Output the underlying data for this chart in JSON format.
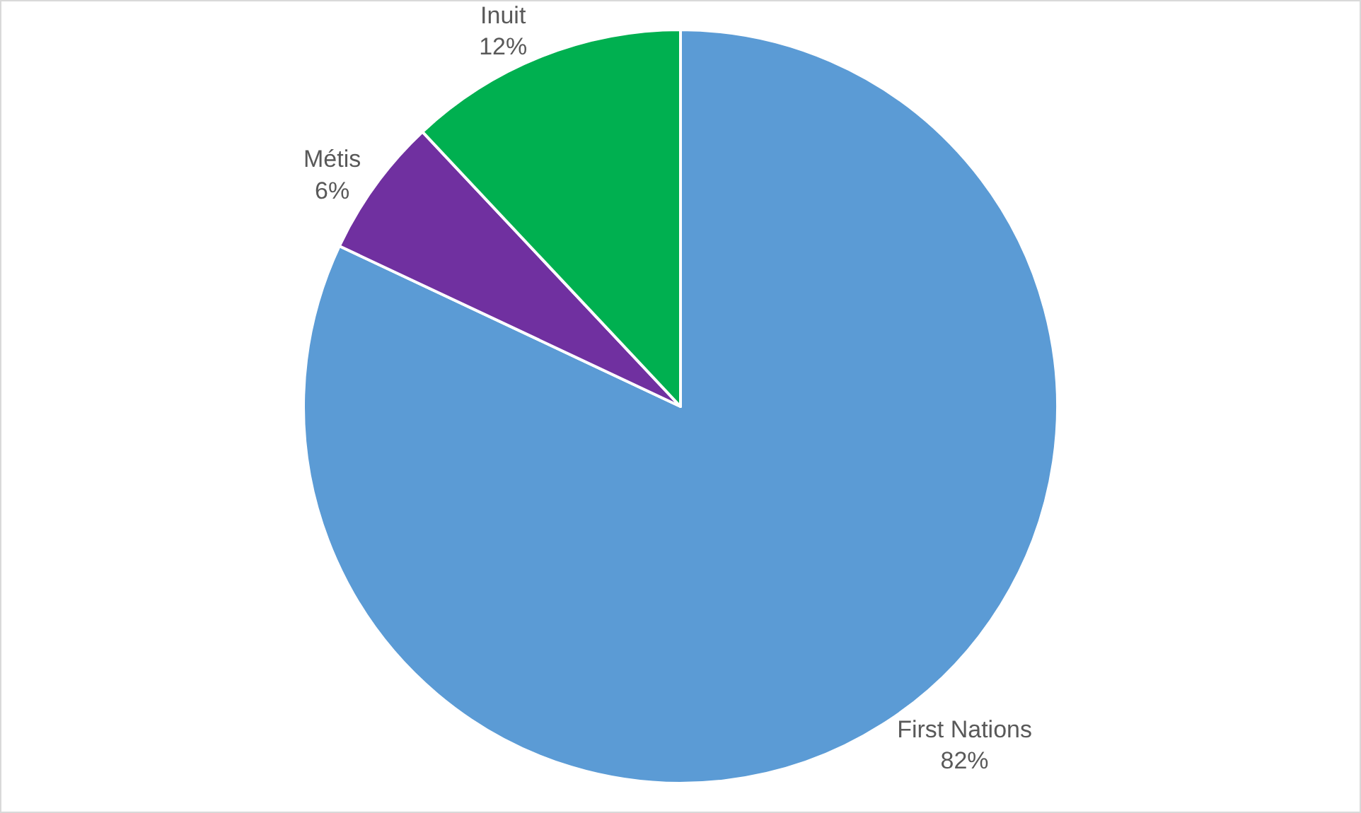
{
  "chart_data": {
    "type": "pie",
    "categories": [
      "First Nations",
      "Métis",
      "Inuit"
    ],
    "values": [
      82,
      6,
      12
    ],
    "value_labels": [
      "82%",
      "6%",
      "12%"
    ],
    "colors": [
      "#5b9bd5",
      "#7030a0",
      "#00b050"
    ],
    "legend": false
  }
}
